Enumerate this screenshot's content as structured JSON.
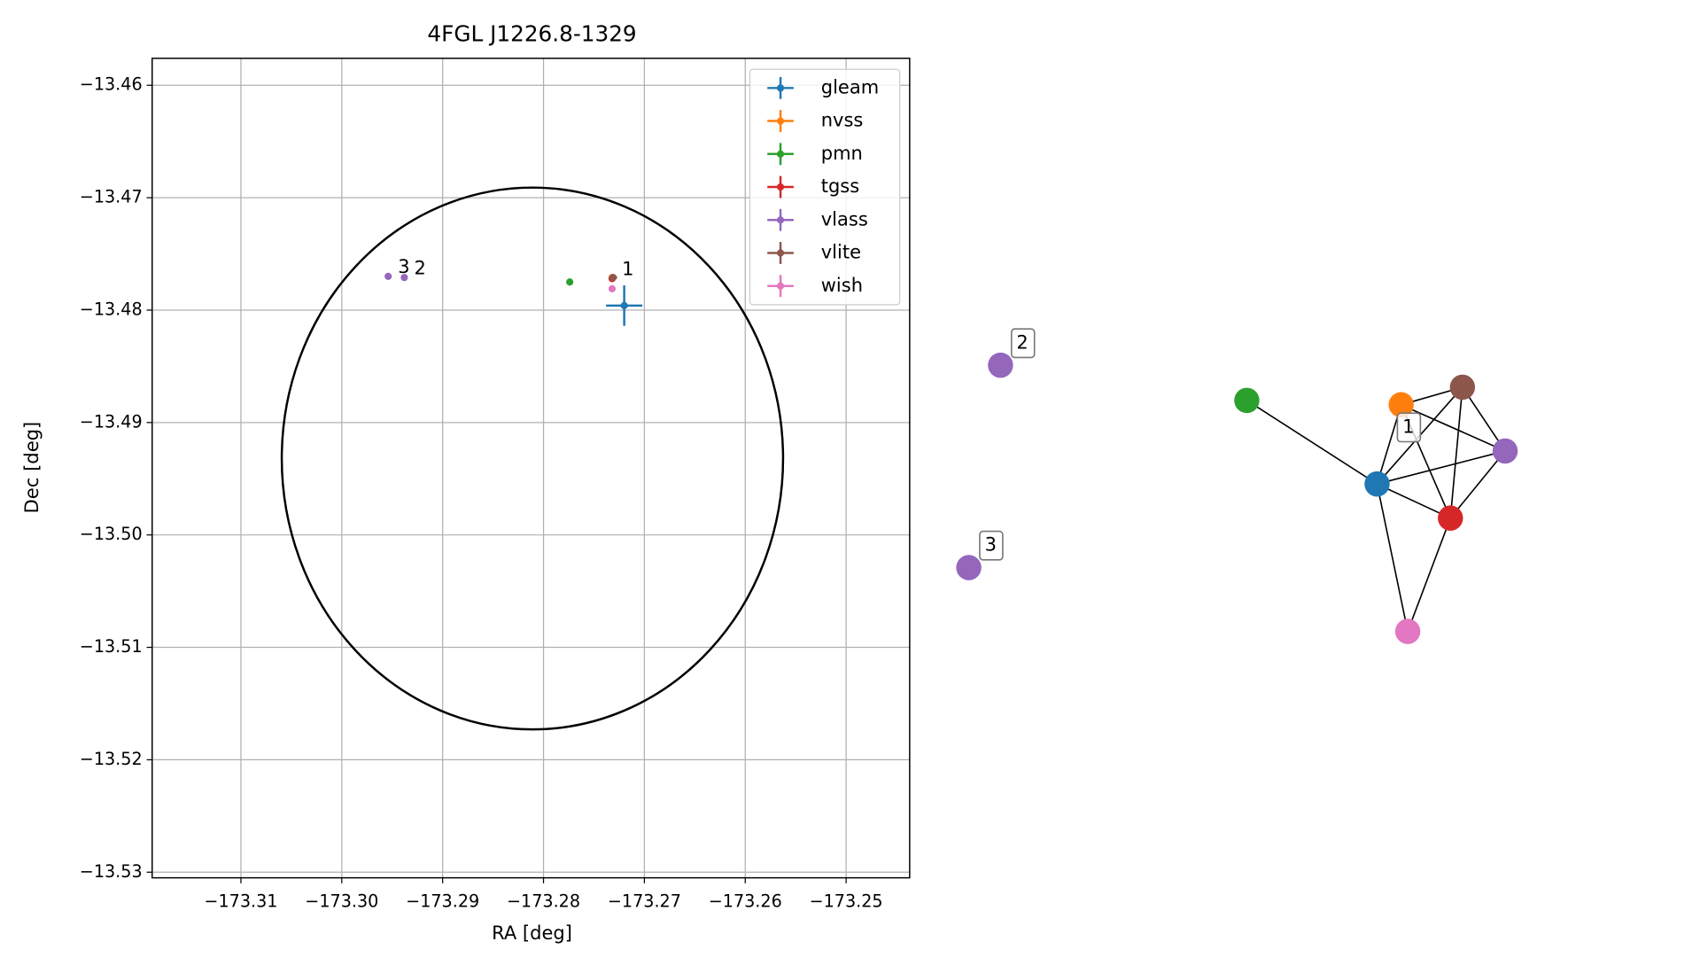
{
  "chart_data": [
    {
      "type": "scatter",
      "title": "4FGL J1226.8-1329",
      "x_label": "RA [deg]",
      "y_label": "Dec [deg]",
      "xlim": [
        -173.3188,
        -173.2437
      ],
      "ylim": [
        -13.5305,
        -13.4576
      ],
      "grid": true,
      "legend": "upper right",
      "xticks": [
        {
          "value": -173.31,
          "label": "−173.31"
        },
        {
          "value": -173.3,
          "label": "−173.30"
        },
        {
          "value": -173.29,
          "label": "−173.29"
        },
        {
          "value": -173.28,
          "label": "−173.28"
        },
        {
          "value": -173.27,
          "label": "−173.27"
        },
        {
          "value": -173.26,
          "label": "−173.26"
        },
        {
          "value": -173.25,
          "label": "−173.25"
        }
      ],
      "yticks": [
        {
          "value": -13.46,
          "label": "−13.46"
        },
        {
          "value": -13.47,
          "label": "−13.47"
        },
        {
          "value": -13.48,
          "label": "−13.48"
        },
        {
          "value": -13.49,
          "label": "−13.49"
        },
        {
          "value": -13.5,
          "label": "−13.50"
        },
        {
          "value": -13.51,
          "label": "−13.51"
        },
        {
          "value": -13.52,
          "label": "−13.52"
        },
        {
          "value": -13.53,
          "label": "−13.53"
        }
      ],
      "ellipse": {
        "x": -173.2811,
        "y": -13.4932,
        "rx": 0.02485,
        "ry": 0.0241,
        "color": "#000000"
      },
      "series": [
        {
          "name": "gleam",
          "color": "#1f77b4",
          "x": [
            -173.272
          ],
          "y": [
            -13.4796
          ],
          "xerr": [
            0.0018
          ],
          "yerr": [
            0.0018
          ]
        },
        {
          "name": "nvss",
          "color": "#ff7f0e",
          "x": [
            -173.2732
          ],
          "y": [
            -13.4771
          ],
          "xerr": [
            0.0001
          ],
          "yerr": [
            0.0001
          ]
        },
        {
          "name": "pmn",
          "color": "#2ca02c",
          "x": [
            -173.2774
          ],
          "y": [
            -13.4775
          ],
          "xerr": [
            0.0001
          ],
          "yerr": [
            0.0003
          ]
        },
        {
          "name": "tgss",
          "color": "#d62728",
          "x": [
            -173.2732
          ],
          "y": [
            -13.4772
          ],
          "xerr": [
            0.0001
          ],
          "yerr": [
            0.0002
          ]
        },
        {
          "name": "vlass",
          "color": "#9467bd",
          "x": [
            -173.2954,
            -173.2938
          ],
          "y": [
            -13.477,
            -13.4771
          ],
          "xerr": [
            0.0001,
            0.0001
          ],
          "yerr": [
            0.0001,
            0.0001
          ]
        },
        {
          "name": "vlite",
          "color": "#8c564b",
          "x": [
            -173.2731
          ],
          "y": [
            -13.4771
          ],
          "xerr": [
            0.0004
          ],
          "yerr": [
            0.0003
          ]
        },
        {
          "name": "wish",
          "color": "#e377c2",
          "x": [
            -173.2732
          ],
          "y": [
            -13.4781
          ],
          "xerr": [
            0.0001
          ],
          "yerr": [
            0.0001
          ]
        }
      ],
      "annotations": [
        {
          "text": "3",
          "x": -173.2954,
          "y": -13.477
        },
        {
          "text": "2",
          "x": -173.2938,
          "y": -13.4771
        },
        {
          "text": "1",
          "x": -173.2732,
          "y": -13.4772
        }
      ]
    },
    {
      "type": "network",
      "nodes": [
        {
          "color": "#2ca02c"
        },
        {
          "color": "#ff7f0e"
        },
        {
          "color": "#8c564b"
        },
        {
          "color": "#9467bd"
        },
        {
          "color": "#1f77b4"
        },
        {
          "color": "#d62728"
        },
        {
          "color": "#e377c2"
        },
        {
          "color": "#9467bd",
          "label": "2"
        },
        {
          "color": "#9467bd",
          "label": "3"
        }
      ],
      "edges": [
        [
          0,
          4
        ],
        [
          1,
          2
        ],
        [
          1,
          3
        ],
        [
          1,
          4
        ],
        [
          1,
          5
        ],
        [
          2,
          3
        ],
        [
          2,
          4
        ],
        [
          2,
          5
        ],
        [
          4,
          3
        ],
        [
          4,
          5
        ],
        [
          4,
          6
        ],
        [
          5,
          6
        ],
        [
          5,
          3
        ]
      ],
      "cluster_label": "1"
    }
  ]
}
